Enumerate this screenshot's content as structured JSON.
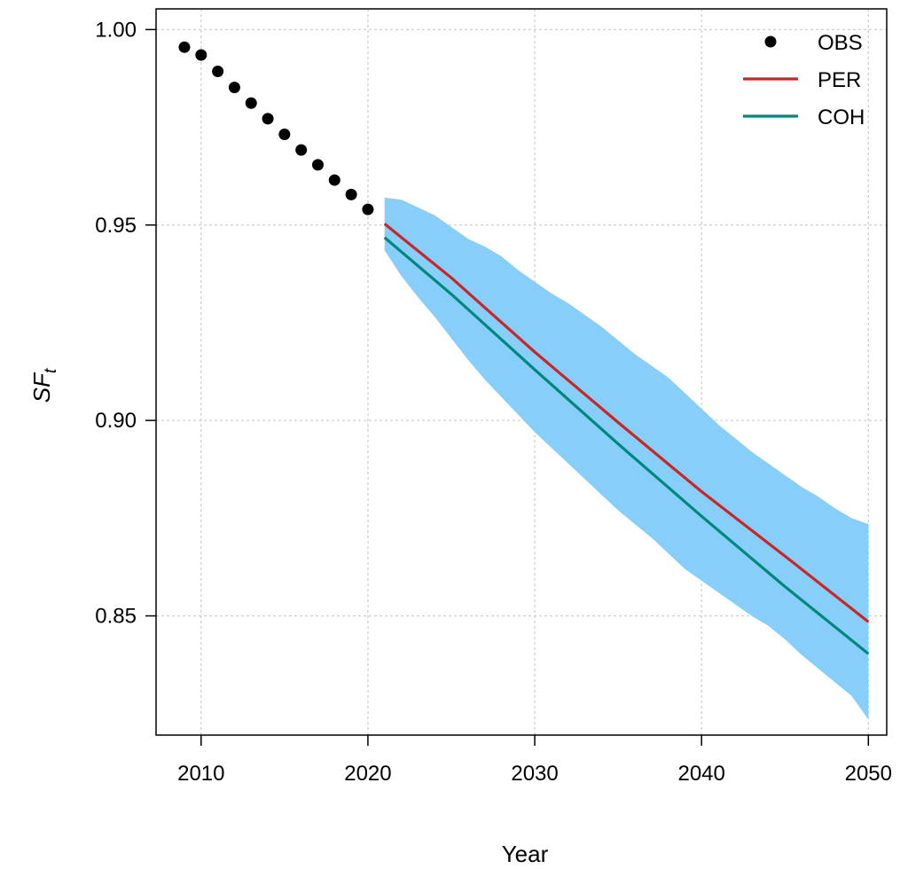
{
  "chart_data": {
    "type": "line",
    "xlabel": "Year",
    "ylabel_main": "SF",
    "ylabel_sub": "t",
    "xlim": [
      2007.3,
      2051.1
    ],
    "ylim": [
      0.8195,
      1.0053
    ],
    "x_ticks": [
      2010,
      2020,
      2030,
      2040,
      2050
    ],
    "x_tick_labels": [
      "2010",
      "2020",
      "2030",
      "2040",
      "2050"
    ],
    "y_ticks": [
      0.85,
      0.9,
      0.95,
      1.0
    ],
    "y_tick_labels": [
      "0.85",
      "0.90",
      "0.95",
      "1.00"
    ],
    "grid": true,
    "legend_position": "top-right",
    "colors": {
      "OBS": "#000000",
      "PER": "#c62828",
      "COH": "#00897b",
      "band": "#87cefa"
    },
    "observed": {
      "name": "OBS",
      "x": [
        2009,
        2010,
        2011,
        2012,
        2013,
        2014,
        2015,
        2016,
        2017,
        2018,
        2019,
        2020
      ],
      "y": [
        0.9955,
        0.9935,
        0.9893,
        0.9852,
        0.9812,
        0.9772,
        0.9732,
        0.9692,
        0.9654,
        0.9615,
        0.9578,
        0.954
      ]
    },
    "series": [
      {
        "name": "PER",
        "x": [
          2021,
          2025,
          2030,
          2035,
          2040,
          2045,
          2050
        ],
        "y": [
          0.9503,
          0.9365,
          0.9175,
          0.8995,
          0.8818,
          0.8653,
          0.8485
        ]
      },
      {
        "name": "COH",
        "x": [
          2021,
          2025,
          2030,
          2035,
          2040,
          2045,
          2050
        ],
        "y": [
          0.9468,
          0.9323,
          0.913,
          0.894,
          0.8755,
          0.8575,
          0.8403
        ]
      }
    ],
    "band": {
      "x": [
        2021,
        2022,
        2023,
        2024,
        2025,
        2026,
        2027,
        2028,
        2029,
        2030,
        2031,
        2032,
        2033,
        2034,
        2035,
        2036,
        2037,
        2038,
        2039,
        2040,
        2041,
        2042,
        2043,
        2044,
        2045,
        2046,
        2047,
        2048,
        2049,
        2050
      ],
      "upper": [
        0.957,
        0.9565,
        0.9545,
        0.9525,
        0.9495,
        0.9465,
        0.9445,
        0.942,
        0.9385,
        0.9355,
        0.9325,
        0.93,
        0.927,
        0.924,
        0.9205,
        0.917,
        0.914,
        0.911,
        0.907,
        0.903,
        0.899,
        0.8955,
        0.892,
        0.889,
        0.886,
        0.883,
        0.8805,
        0.8775,
        0.875,
        0.8735
      ],
      "lower": [
        0.9435,
        0.937,
        0.9315,
        0.9265,
        0.921,
        0.9155,
        0.9105,
        0.906,
        0.9015,
        0.897,
        0.893,
        0.889,
        0.885,
        0.881,
        0.877,
        0.8735,
        0.87,
        0.866,
        0.862,
        0.859,
        0.856,
        0.853,
        0.85,
        0.8475,
        0.844,
        0.84,
        0.8365,
        0.833,
        0.8295,
        0.8235
      ]
    },
    "legend": [
      {
        "label": "OBS",
        "kind": "point"
      },
      {
        "label": "PER",
        "kind": "line"
      },
      {
        "label": "COH",
        "kind": "line"
      }
    ]
  }
}
